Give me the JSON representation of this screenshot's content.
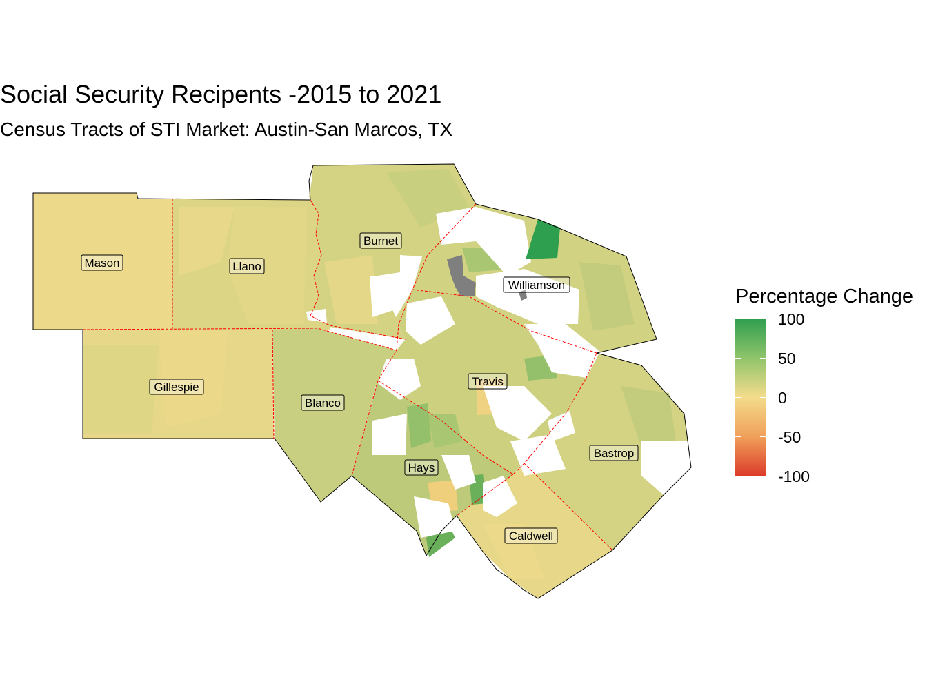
{
  "title": "Social Security Recipents -2015 to 2021",
  "subtitle": "Census Tracts of STI Market: Austin-San Marcos, TX",
  "legend": {
    "title": "Percentage Change",
    "ticks": [
      "100",
      "50",
      "0",
      "-50",
      "-100"
    ],
    "colors": {
      "high": "#2e9e4f",
      "mid_high": "#8fc46a",
      "zero": "#f3dc8c",
      "mid_low": "#f0a05a",
      "low": "#dc3c2a"
    }
  },
  "counties": {
    "mason": "Mason",
    "llano": "Llano",
    "burnet": "Burnet",
    "williamson": "Williamson",
    "gillespie": "Gillespie",
    "blanco": "Blanco",
    "travis": "Travis",
    "bastrop": "Bastrop",
    "hays": "Hays",
    "caldwell": "Caldwell"
  },
  "fill_colors": {
    "near_zero": "#ecd98a",
    "low_pos": "#dcd585",
    "mid_pos": "#cdd17f",
    "high_pos": "#a9c672",
    "very_high": "#2e9e4f",
    "no_data": "#7f7f7f",
    "missing": "#ffffff",
    "county_border": "#ff0000"
  }
}
